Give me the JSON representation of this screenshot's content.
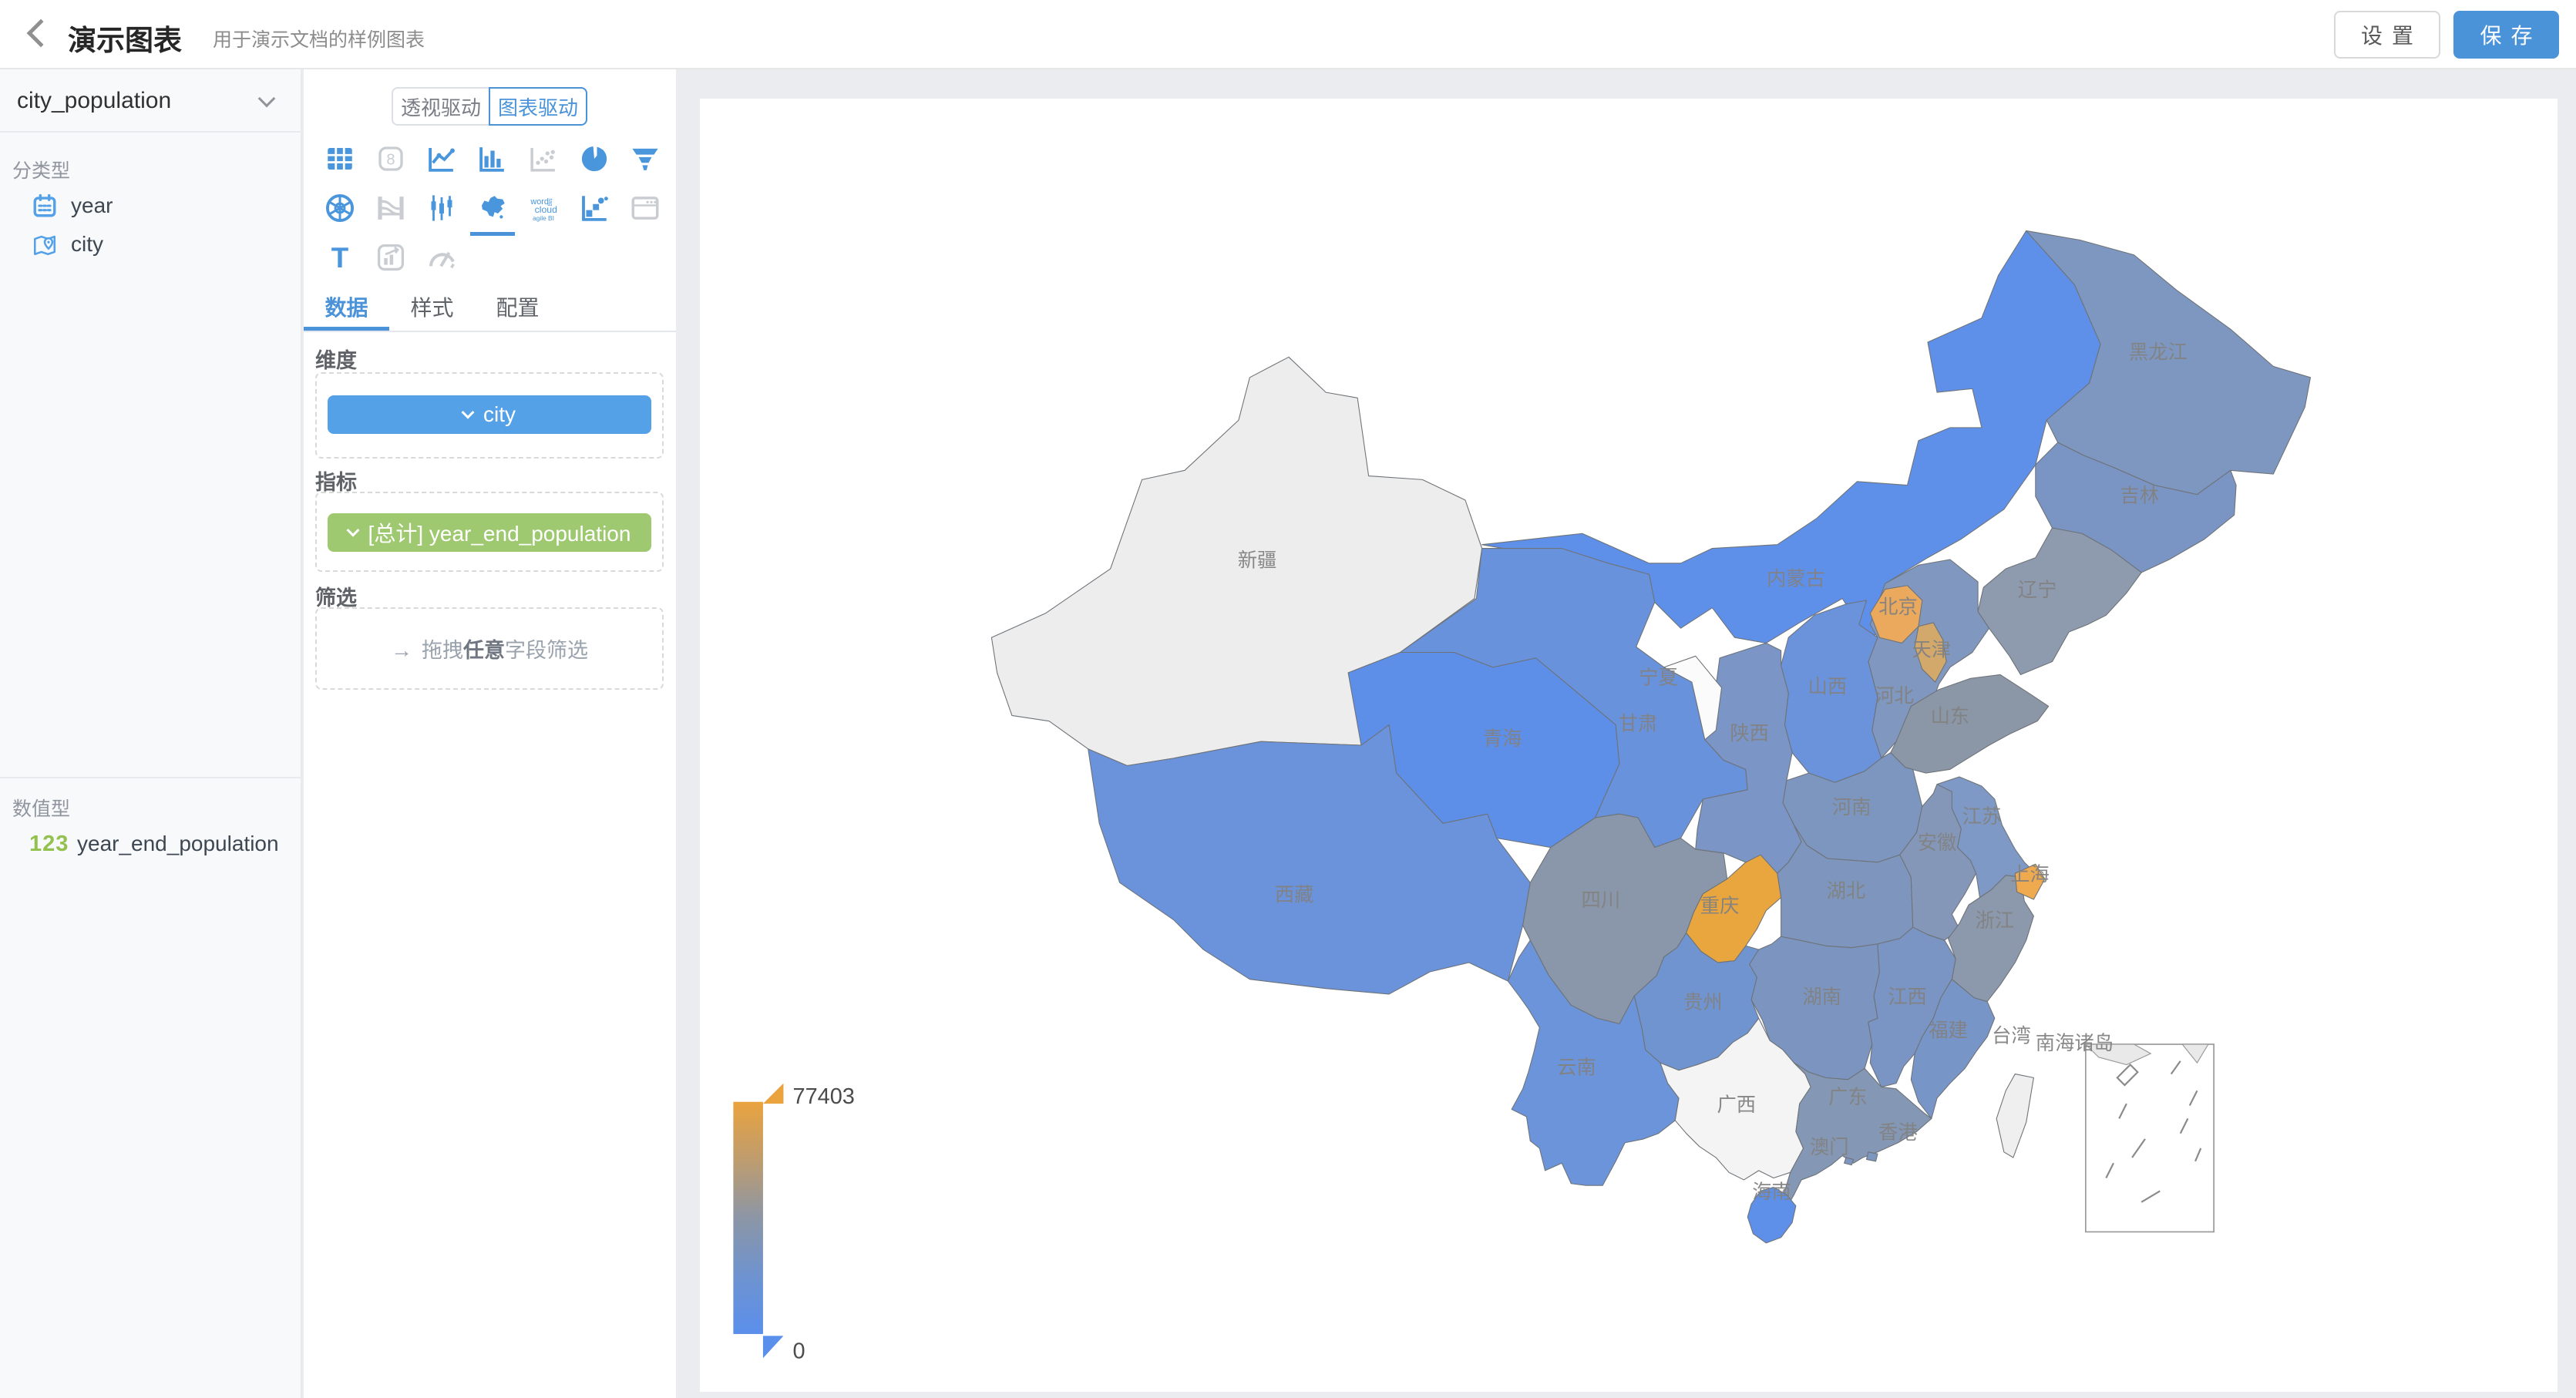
{
  "header": {
    "title": "演示图表",
    "subtitle": "用于演示文档的样例图表",
    "settings_label": "设置",
    "save_label": "保存"
  },
  "dataset_panel": {
    "dataset_name": "city_population",
    "categorical_section_label": "分类型",
    "categorical_fields": [
      {
        "name": "year",
        "icon": "calendar-icon"
      },
      {
        "name": "city",
        "icon": "location-icon"
      }
    ],
    "numeric_section_label": "数值型",
    "numeric_fields": [
      {
        "name": "year_end_population",
        "icon": "numeric-badge-icon",
        "badge": "123"
      }
    ]
  },
  "chart_panel": {
    "mode_toggle": {
      "options": [
        "透视驱动",
        "图表驱动"
      ],
      "selected": "图表驱动"
    },
    "chart_types": [
      {
        "icon": "table-icon",
        "enabled": true,
        "selected": false
      },
      {
        "icon": "metric-card-icon",
        "enabled": false,
        "selected": false
      },
      {
        "icon": "line-chart-icon",
        "enabled": true,
        "selected": false
      },
      {
        "icon": "bar-chart-icon",
        "enabled": true,
        "selected": false
      },
      {
        "icon": "scatter-chart-icon",
        "enabled": false,
        "selected": false
      },
      {
        "icon": "pie-chart-icon",
        "enabled": true,
        "selected": false
      },
      {
        "icon": "funnel-chart-icon",
        "enabled": true,
        "selected": false
      },
      {
        "icon": "radar-chart-icon",
        "enabled": true,
        "selected": false
      },
      {
        "icon": "sankey-chart-icon",
        "enabled": false,
        "selected": false
      },
      {
        "icon": "candlestick-chart-icon",
        "enabled": true,
        "selected": false
      },
      {
        "icon": "china-map-icon",
        "enabled": true,
        "selected": true
      },
      {
        "icon": "word-cloud-icon",
        "enabled": true,
        "selected": false
      },
      {
        "icon": "bubble-chart-icon",
        "enabled": true,
        "selected": false
      },
      {
        "icon": "iframe-icon",
        "enabled": false,
        "selected": false
      },
      {
        "icon": "rich-text-icon",
        "enabled": true,
        "selected": false
      },
      {
        "icon": "combo-chart-icon",
        "enabled": false,
        "selected": false
      },
      {
        "icon": "gauge-chart-icon",
        "enabled": false,
        "selected": false
      }
    ],
    "tabs": [
      {
        "label": "数据",
        "active": true
      },
      {
        "label": "样式",
        "active": false
      },
      {
        "label": "配置",
        "active": false
      }
    ],
    "dimension": {
      "label": "维度",
      "chips": [
        {
          "text": "city",
          "color": "#55a1e8"
        }
      ]
    },
    "measure": {
      "label": "指标",
      "chips": [
        {
          "text": "[总计] year_end_population",
          "color": "#9fc970"
        }
      ]
    },
    "filter": {
      "label": "筛选",
      "arrow_glyph": "→",
      "placeholder_prefix": "拖拽",
      "placeholder_bold": "任意",
      "placeholder_suffix": "字段筛选"
    }
  },
  "map": {
    "legend": {
      "max": "77403",
      "min": "0",
      "gradient": [
        "#EAA33E",
        "#BE9C6E",
        "#8C96A6",
        "#6E93CF",
        "#5B8FEC"
      ]
    },
    "inset_label": "南海诸岛",
    "provinces": [
      {
        "id": "xinjiang",
        "name": "新疆",
        "color": "#EDEDEE"
      },
      {
        "id": "xizang",
        "name": "西藏",
        "color": "#6A93DC"
      },
      {
        "id": "neimenggu",
        "name": "内蒙古",
        "color": "#5F90E9"
      },
      {
        "id": "qinghai",
        "name": "青海",
        "color": "#5D8FE9"
      },
      {
        "id": "gansu",
        "name": "甘肃",
        "color": "#6992DC"
      },
      {
        "id": "sichuan",
        "name": "四川",
        "color": "#8A96A9"
      },
      {
        "id": "heilongjiang",
        "name": "黑龙江",
        "color": "#7E97C0"
      },
      {
        "id": "jilin",
        "name": "吉林",
        "color": "#7A95C4"
      },
      {
        "id": "liaoning",
        "name": "辽宁",
        "color": "#8E9AAE"
      },
      {
        "id": "hebei",
        "name": "河北",
        "color": "#8097C0"
      },
      {
        "id": "shanxi",
        "name": "山西",
        "color": "#6B93DC"
      },
      {
        "id": "shandong",
        "name": "山东",
        "color": "#8B96A7"
      },
      {
        "id": "henan",
        "name": "河南",
        "color": "#7D96BF"
      },
      {
        "id": "shaanxi",
        "name": "陕西",
        "color": "#7A95C6"
      },
      {
        "id": "hubei",
        "name": "湖北",
        "color": "#7E96BD"
      },
      {
        "id": "anhui",
        "name": "安徽",
        "color": "#8497B8"
      },
      {
        "id": "jiangsu",
        "name": "江苏",
        "color": "#7E99C6"
      },
      {
        "id": "zhejiang",
        "name": "浙江",
        "color": "#8C98AB"
      },
      {
        "id": "hunan",
        "name": "湖南",
        "color": "#7C95C0"
      },
      {
        "id": "jiangxi",
        "name": "江西",
        "color": "#7A94C3"
      },
      {
        "id": "guizhou",
        "name": "贵州",
        "color": "#7094CF"
      },
      {
        "id": "yunnan",
        "name": "云南",
        "color": "#6C94DA"
      },
      {
        "id": "guangxi",
        "name": "广西",
        "color": "#F4F4F4"
      },
      {
        "id": "guangdong",
        "name": "广东",
        "color": "#8497B4"
      },
      {
        "id": "fujian",
        "name": "福建",
        "color": "#7895C8"
      },
      {
        "id": "hainan",
        "name": "海南",
        "color": "#5E90E9"
      },
      {
        "id": "taiwan",
        "name": "台湾",
        "color": "#EFEFEF"
      },
      {
        "id": "ningxia",
        "name": "宁夏",
        "color": "#FBFBFB"
      },
      {
        "id": "chongqing",
        "name": "重庆",
        "color": "#E9A63F"
      },
      {
        "id": "beijing",
        "name": "北京",
        "color": "#EBA95E"
      },
      {
        "id": "tianjin",
        "name": "天津",
        "color": "#D2A86B"
      },
      {
        "id": "shanghai",
        "name": "上海",
        "color": "#EFA94E"
      },
      {
        "id": "hongkong",
        "name": "香港",
        "color": "#7D96BF"
      },
      {
        "id": "macau",
        "name": "澳门",
        "color": "#7D96BF"
      }
    ]
  }
}
